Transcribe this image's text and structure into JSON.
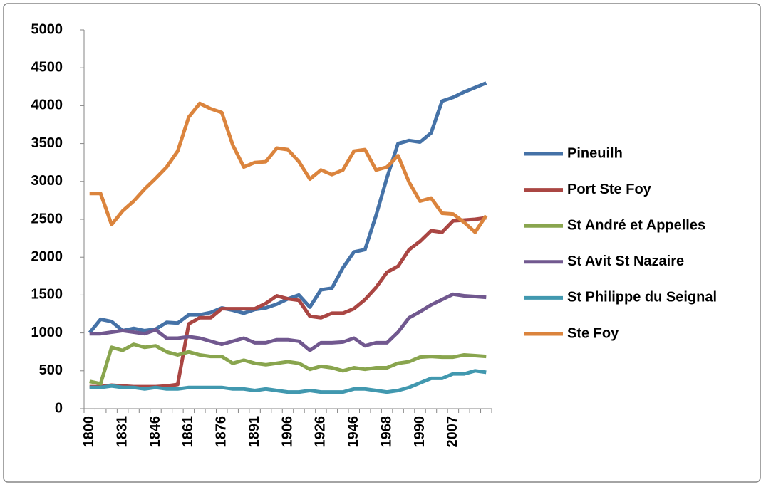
{
  "chart_data": {
    "type": "line",
    "categories": [
      "1800",
      null,
      null,
      "1831",
      null,
      null,
      "1846",
      null,
      null,
      "1861",
      null,
      null,
      "1876",
      null,
      null,
      "1891",
      null,
      null,
      "1906",
      null,
      null,
      "1926",
      null,
      null,
      "1946",
      null,
      null,
      "1968",
      null,
      null,
      "1990",
      null,
      null,
      "2007",
      null,
      null,
      null
    ],
    "series": [
      {
        "name": "Pineuilh",
        "color": "#4572a7",
        "values": [
          1000,
          1180,
          1150,
          1030,
          1060,
          1030,
          1050,
          1140,
          1130,
          1240,
          1240,
          1270,
          1330,
          1300,
          1260,
          1310,
          1330,
          1380,
          1450,
          1500,
          1340,
          1570,
          1590,
          1860,
          2070,
          2100,
          2550,
          3050,
          3500,
          3540,
          3520,
          3640,
          4060,
          4110,
          4180,
          4240,
          4300
        ]
      },
      {
        "name": "Port Ste Foy",
        "color": "#aa4643",
        "values": [
          290,
          290,
          310,
          300,
          290,
          290,
          290,
          300,
          320,
          1120,
          1200,
          1200,
          1320,
          1320,
          1320,
          1320,
          1390,
          1490,
          1450,
          1430,
          1220,
          1200,
          1260,
          1260,
          1320,
          1440,
          1600,
          1800,
          1880,
          2100,
          2210,
          2350,
          2330,
          2480,
          2490,
          2500,
          2520
        ]
      },
      {
        "name": "St André et Appelles",
        "color": "#89a54e",
        "values": [
          360,
          330,
          810,
          770,
          850,
          810,
          830,
          750,
          710,
          750,
          710,
          690,
          690,
          600,
          640,
          600,
          580,
          600,
          620,
          600,
          520,
          560,
          540,
          500,
          540,
          520,
          540,
          540,
          600,
          620,
          680,
          690,
          680,
          680,
          710,
          700,
          690
        ]
      },
      {
        "name": "St Avit St Nazaire",
        "color": "#71588f",
        "values": [
          990,
          990,
          1010,
          1030,
          1010,
          990,
          1040,
          930,
          930,
          950,
          930,
          890,
          850,
          890,
          930,
          870,
          870,
          910,
          910,
          890,
          770,
          870,
          870,
          880,
          930,
          830,
          870,
          870,
          1010,
          1200,
          1280,
          1370,
          1440,
          1510,
          1490,
          1480,
          1470
        ]
      },
      {
        "name": "St Philippe du Seignal",
        "color": "#4198af",
        "values": [
          280,
          280,
          300,
          280,
          280,
          260,
          280,
          260,
          260,
          280,
          280,
          280,
          280,
          260,
          260,
          240,
          260,
          240,
          220,
          220,
          240,
          220,
          220,
          220,
          260,
          260,
          240,
          220,
          240,
          280,
          340,
          400,
          400,
          460,
          460,
          500,
          480
        ]
      },
      {
        "name": "Ste Foy",
        "color": "#db843d",
        "values": [
          2840,
          2840,
          2430,
          2610,
          2740,
          2900,
          3040,
          3190,
          3400,
          3850,
          4030,
          3960,
          3910,
          3480,
          3190,
          3250,
          3260,
          3440,
          3420,
          3260,
          3030,
          3150,
          3090,
          3150,
          3400,
          3420,
          3150,
          3190,
          3340,
          2990,
          2740,
          2780,
          2580,
          2570,
          2460,
          2330,
          2550
        ]
      }
    ],
    "ylim": [
      0,
      5000
    ],
    "yticks": [
      0,
      500,
      1000,
      1500,
      2000,
      2500,
      3000,
      3500,
      4000,
      4500,
      5000
    ],
    "legend": "right",
    "grid": false
  }
}
